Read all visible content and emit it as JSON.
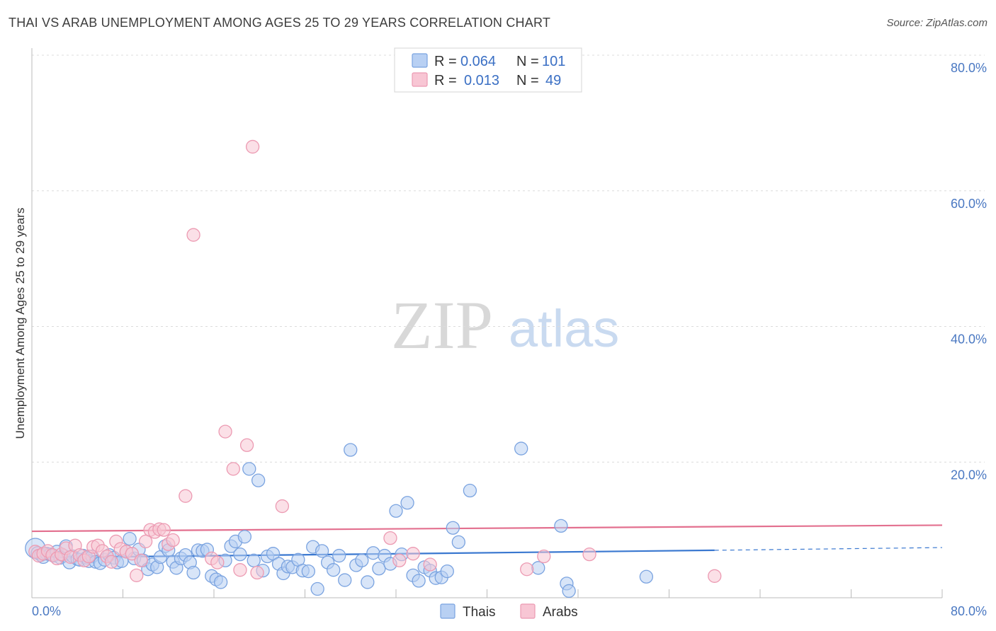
{
  "title": "THAI VS ARAB UNEMPLOYMENT AMONG AGES 25 TO 29 YEARS CORRELATION CHART",
  "source": "Source: ZipAtlas.com",
  "watermark": {
    "zip": "ZIP",
    "atlas": "atlas"
  },
  "legend": {
    "r_label": "R =",
    "n_label": "N =",
    "items": [
      {
        "r": "0.064",
        "n": "101",
        "fill": "#b8d0f3",
        "stroke": "#7aa3e0"
      },
      {
        "r": "0.013",
        "n": "49",
        "fill": "#f8c6d4",
        "stroke": "#ec9ab2"
      }
    ]
  },
  "chart_data": {
    "type": "scatter",
    "title": "THAI VS ARAB UNEMPLOYMENT AMONG AGES 25 TO 29 YEARS CORRELATION CHART",
    "xlabel": "",
    "ylabel": "Unemployment Among Ages 25 to 29 years",
    "xlim": [
      0,
      80
    ],
    "ylim": [
      0,
      80
    ],
    "x_tick_labels": [
      "0.0%",
      "80.0%"
    ],
    "y_ticks": [
      20,
      40,
      60,
      80
    ],
    "y_tick_labels": [
      "20.0%",
      "40.0%",
      "60.0%",
      "80.0%"
    ],
    "grid": true,
    "legend_position": "top-center",
    "series": [
      {
        "name": "Thais",
        "color": "#7aa3e0",
        "fill": "#b8d0f3",
        "trend": {
          "x0": 0,
          "y0": 5.9,
          "x1": 60,
          "y1": 7.0,
          "dash_x1": 80,
          "dash_y1": 7.4,
          "color": "#3a78d0"
        },
        "points": [
          [
            0.3,
            7.3
          ],
          [
            0.5,
            6.6
          ],
          [
            0.8,
            6.3
          ],
          [
            1.0,
            6.0
          ],
          [
            1.3,
            6.5
          ],
          [
            1.6,
            6.4
          ],
          [
            1.9,
            6.2
          ],
          [
            2.2,
            6.8
          ],
          [
            2.5,
            5.9
          ],
          [
            2.8,
            6.2
          ],
          [
            3.0,
            7.6
          ],
          [
            3.3,
            5.2
          ],
          [
            3.6,
            6.1
          ],
          [
            4.0,
            5.7
          ],
          [
            4.2,
            5.6
          ],
          [
            4.5,
            6.2
          ],
          [
            4.8,
            5.9
          ],
          [
            5.0,
            5.4
          ],
          [
            5.3,
            6.1
          ],
          [
            5.6,
            5.3
          ],
          [
            6.0,
            5.1
          ],
          [
            6.4,
            5.6
          ],
          [
            6.8,
            6.3
          ],
          [
            7.2,
            5.9
          ],
          [
            7.5,
            5.2
          ],
          [
            7.9,
            5.4
          ],
          [
            8.3,
            6.8
          ],
          [
            8.6,
            8.7
          ],
          [
            9.0,
            5.8
          ],
          [
            9.4,
            7.1
          ],
          [
            9.8,
            5.5
          ],
          [
            10.2,
            4.2
          ],
          [
            10.6,
            4.9
          ],
          [
            11.0,
            4.5
          ],
          [
            11.3,
            6.0
          ],
          [
            11.7,
            7.6
          ],
          [
            12.0,
            7.0
          ],
          [
            12.4,
            5.3
          ],
          [
            12.7,
            4.4
          ],
          [
            13.1,
            5.8
          ],
          [
            13.5,
            6.3
          ],
          [
            13.9,
            5.2
          ],
          [
            14.2,
            3.7
          ],
          [
            14.6,
            7.0
          ],
          [
            15.0,
            6.9
          ],
          [
            15.4,
            7.1
          ],
          [
            15.8,
            3.2
          ],
          [
            16.2,
            2.7
          ],
          [
            16.6,
            2.3
          ],
          [
            17.0,
            5.5
          ],
          [
            17.5,
            7.6
          ],
          [
            17.9,
            8.3
          ],
          [
            18.3,
            6.4
          ],
          [
            18.7,
            9.0
          ],
          [
            19.1,
            19.0
          ],
          [
            19.5,
            5.5
          ],
          [
            19.9,
            17.3
          ],
          [
            20.3,
            4.0
          ],
          [
            20.7,
            6.1
          ],
          [
            21.2,
            6.5
          ],
          [
            21.7,
            5.0
          ],
          [
            22.1,
            3.6
          ],
          [
            22.5,
            4.6
          ],
          [
            22.9,
            4.5
          ],
          [
            23.4,
            5.6
          ],
          [
            23.8,
            4.0
          ],
          [
            24.3,
            3.9
          ],
          [
            24.7,
            7.5
          ],
          [
            25.1,
            1.3
          ],
          [
            25.5,
            6.9
          ],
          [
            26.0,
            5.2
          ],
          [
            26.5,
            4.1
          ],
          [
            27.0,
            6.2
          ],
          [
            27.5,
            2.6
          ],
          [
            28.0,
            21.8
          ],
          [
            28.5,
            4.8
          ],
          [
            29.0,
            5.5
          ],
          [
            29.5,
            2.3
          ],
          [
            30.0,
            6.6
          ],
          [
            30.5,
            4.3
          ],
          [
            31.0,
            6.2
          ],
          [
            31.5,
            5.0
          ],
          [
            32.0,
            12.8
          ],
          [
            32.5,
            6.4
          ],
          [
            33.0,
            14.0
          ],
          [
            33.5,
            3.3
          ],
          [
            34.0,
            2.5
          ],
          [
            34.5,
            4.5
          ],
          [
            35.0,
            4.0
          ],
          [
            35.5,
            2.9
          ],
          [
            36.0,
            3.0
          ],
          [
            36.5,
            3.9
          ],
          [
            37.0,
            10.3
          ],
          [
            37.5,
            8.2
          ],
          [
            38.5,
            15.8
          ],
          [
            43.0,
            22.0
          ],
          [
            44.5,
            4.4
          ],
          [
            46.5,
            10.6
          ],
          [
            47.0,
            2.1
          ],
          [
            47.2,
            1.0
          ],
          [
            54.0,
            3.1
          ]
        ]
      },
      {
        "name": "Arabs",
        "color": "#ec9ab2",
        "fill": "#f8c6d4",
        "trend": {
          "x0": 0,
          "y0": 9.8,
          "x1": 80,
          "y1": 10.7,
          "color": "#e3708f"
        },
        "points": [
          [
            0.3,
            6.8
          ],
          [
            0.6,
            6.2
          ],
          [
            1.0,
            6.5
          ],
          [
            1.4,
            6.9
          ],
          [
            1.8,
            6.3
          ],
          [
            2.2,
            5.8
          ],
          [
            2.6,
            6.4
          ],
          [
            3.0,
            7.3
          ],
          [
            3.4,
            6.0
          ],
          [
            3.8,
            7.7
          ],
          [
            4.2,
            6.3
          ],
          [
            4.6,
            5.5
          ],
          [
            5.0,
            6.1
          ],
          [
            5.4,
            7.5
          ],
          [
            5.8,
            7.7
          ],
          [
            6.2,
            6.9
          ],
          [
            6.6,
            6.1
          ],
          [
            7.0,
            5.3
          ],
          [
            7.4,
            8.3
          ],
          [
            7.8,
            7.2
          ],
          [
            8.3,
            6.8
          ],
          [
            8.8,
            6.5
          ],
          [
            9.2,
            3.3
          ],
          [
            9.6,
            5.5
          ],
          [
            10.0,
            8.3
          ],
          [
            10.4,
            10.0
          ],
          [
            10.8,
            9.7
          ],
          [
            11.2,
            10.1
          ],
          [
            11.6,
            10.0
          ],
          [
            12.0,
            7.9
          ],
          [
            12.4,
            8.5
          ],
          [
            13.5,
            15.0
          ],
          [
            14.2,
            53.5
          ],
          [
            15.8,
            5.8
          ],
          [
            16.3,
            5.2
          ],
          [
            17.0,
            24.5
          ],
          [
            17.7,
            19.0
          ],
          [
            18.3,
            4.1
          ],
          [
            18.9,
            22.5
          ],
          [
            19.4,
            66.5
          ],
          [
            19.8,
            3.7
          ],
          [
            22.0,
            13.5
          ],
          [
            31.5,
            8.8
          ],
          [
            32.3,
            5.5
          ],
          [
            33.5,
            6.5
          ],
          [
            35.0,
            4.9
          ],
          [
            43.5,
            4.2
          ],
          [
            45.0,
            6.1
          ],
          [
            49.0,
            6.4
          ],
          [
            60.0,
            3.2
          ]
        ]
      }
    ]
  }
}
